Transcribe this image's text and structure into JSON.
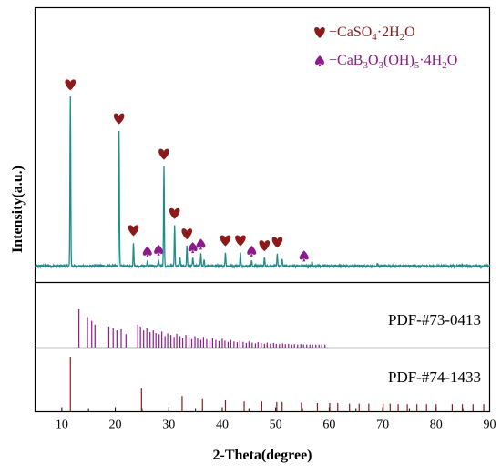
{
  "chart_data": {
    "type": "line",
    "xlabel": "2-Theta(degree)",
    "ylabel": "Intensity(a.u.)",
    "xlim": [
      5,
      90
    ],
    "xticks": [
      "10",
      "20",
      "30",
      "40",
      "50",
      "60",
      "70",
      "80",
      "90"
    ],
    "grid": false,
    "legend_position": "top-right",
    "legend": [
      {
        "symbol": "heart",
        "color": "#8b1a1a",
        "label": "CaSO4·2H2O"
      },
      {
        "symbol": "spade",
        "color": "#8b1a8b",
        "label": "CaB3O3(OH)5·4H2O"
      }
    ],
    "pattern_color": "#1f8c8c",
    "pattern_baseline": 3,
    "pattern_peaks": [
      {
        "x": 11.6,
        "y": 100
      },
      {
        "x": 20.7,
        "y": 80
      },
      {
        "x": 23.4,
        "y": 14
      },
      {
        "x": 26.0,
        "y": 2.5
      },
      {
        "x": 28.1,
        "y": 3.5
      },
      {
        "x": 29.1,
        "y": 59
      },
      {
        "x": 31.1,
        "y": 24
      },
      {
        "x": 32.1,
        "y": 5
      },
      {
        "x": 33.4,
        "y": 12
      },
      {
        "x": 34.5,
        "y": 5
      },
      {
        "x": 36.0,
        "y": 7
      },
      {
        "x": 36.6,
        "y": 4
      },
      {
        "x": 40.6,
        "y": 8
      },
      {
        "x": 43.4,
        "y": 8
      },
      {
        "x": 45.5,
        "y": 3
      },
      {
        "x": 47.9,
        "y": 5
      },
      {
        "x": 50.3,
        "y": 7
      },
      {
        "x": 51.2,
        "y": 4
      },
      {
        "x": 56.8,
        "y": 2.5
      },
      {
        "x": 69.0,
        "y": 1.5
      }
    ],
    "heart_markers_x": [
      11.6,
      20.7,
      23.4,
      29.1,
      31.1,
      33.4,
      40.6,
      43.4,
      47.9,
      50.3
    ],
    "spade_markers_x": [
      26.0,
      28.1,
      34.5,
      36.0,
      45.5,
      55.3
    ],
    "reference_patterns": [
      {
        "name": "PDF-#73-0413",
        "color": "#8b1a8b",
        "lines": [
          {
            "x": 13.2,
            "h": 1.0
          },
          {
            "x": 14.8,
            "h": 0.8
          },
          {
            "x": 15.6,
            "h": 0.7
          },
          {
            "x": 16.2,
            "h": 0.6
          },
          {
            "x": 18.8,
            "h": 0.55
          },
          {
            "x": 19.6,
            "h": 0.5
          },
          {
            "x": 20.3,
            "h": 0.45
          },
          {
            "x": 21.1,
            "h": 0.48
          },
          {
            "x": 22.0,
            "h": 0.35
          },
          {
            "x": 24.2,
            "h": 0.6
          },
          {
            "x": 24.7,
            "h": 0.55
          },
          {
            "x": 25.3,
            "h": 0.45
          },
          {
            "x": 25.9,
            "h": 0.5
          },
          {
            "x": 26.5,
            "h": 0.4
          },
          {
            "x": 27.1,
            "h": 0.45
          },
          {
            "x": 27.6,
            "h": 0.38
          },
          {
            "x": 28.2,
            "h": 0.35
          },
          {
            "x": 28.7,
            "h": 0.42
          },
          {
            "x": 29.3,
            "h": 0.3
          },
          {
            "x": 29.8,
            "h": 0.37
          },
          {
            "x": 30.4,
            "h": 0.33
          },
          {
            "x": 31.0,
            "h": 0.28
          },
          {
            "x": 31.5,
            "h": 0.36
          },
          {
            "x": 32.1,
            "h": 0.3
          },
          {
            "x": 32.6,
            "h": 0.25
          },
          {
            "x": 33.2,
            "h": 0.33
          },
          {
            "x": 33.8,
            "h": 0.28
          },
          {
            "x": 34.3,
            "h": 0.22
          },
          {
            "x": 34.9,
            "h": 0.3
          },
          {
            "x": 35.4,
            "h": 0.25
          },
          {
            "x": 36.0,
            "h": 0.2
          },
          {
            "x": 36.5,
            "h": 0.28
          },
          {
            "x": 37.1,
            "h": 0.22
          },
          {
            "x": 37.7,
            "h": 0.18
          },
          {
            "x": 38.2,
            "h": 0.25
          },
          {
            "x": 38.8,
            "h": 0.2
          },
          {
            "x": 39.4,
            "h": 0.17
          },
          {
            "x": 40.0,
            "h": 0.23
          },
          {
            "x": 40.5,
            "h": 0.18
          },
          {
            "x": 41.1,
            "h": 0.15
          },
          {
            "x": 41.6,
            "h": 0.2
          },
          {
            "x": 42.2,
            "h": 0.16
          },
          {
            "x": 42.8,
            "h": 0.14
          },
          {
            "x": 43.3,
            "h": 0.18
          },
          {
            "x": 43.9,
            "h": 0.15
          },
          {
            "x": 44.5,
            "h": 0.12
          },
          {
            "x": 45.0,
            "h": 0.16
          },
          {
            "x": 45.6,
            "h": 0.13
          },
          {
            "x": 46.2,
            "h": 0.11
          },
          {
            "x": 46.7,
            "h": 0.14
          },
          {
            "x": 47.3,
            "h": 0.12
          },
          {
            "x": 47.9,
            "h": 0.1
          },
          {
            "x": 48.4,
            "h": 0.13
          },
          {
            "x": 49.0,
            "h": 0.1
          },
          {
            "x": 49.6,
            "h": 0.12
          },
          {
            "x": 50.1,
            "h": 0.1
          },
          {
            "x": 50.7,
            "h": 0.09
          },
          {
            "x": 51.3,
            "h": 0.11
          },
          {
            "x": 51.8,
            "h": 0.09
          },
          {
            "x": 52.4,
            "h": 0.1
          },
          {
            "x": 53.0,
            "h": 0.08
          },
          {
            "x": 53.5,
            "h": 0.09
          },
          {
            "x": 54.1,
            "h": 0.08
          },
          {
            "x": 54.7,
            "h": 0.09
          },
          {
            "x": 55.2,
            "h": 0.08
          },
          {
            "x": 55.8,
            "h": 0.08
          },
          {
            "x": 56.4,
            "h": 0.08
          },
          {
            "x": 56.9,
            "h": 0.08
          },
          {
            "x": 57.5,
            "h": 0.08
          },
          {
            "x": 58.1,
            "h": 0.08
          },
          {
            "x": 58.6,
            "h": 0.08
          },
          {
            "x": 59.2,
            "h": 0.08
          }
        ]
      },
      {
        "name": "PDF-#74-1433",
        "color": "#8b1a1a",
        "lines": [
          {
            "x": 11.6,
            "h": 1.0
          },
          {
            "x": 24.9,
            "h": 0.42
          },
          {
            "x": 32.5,
            "h": 0.28
          },
          {
            "x": 36.3,
            "h": 0.22
          },
          {
            "x": 40.6,
            "h": 0.2
          },
          {
            "x": 44.1,
            "h": 0.18
          },
          {
            "x": 47.4,
            "h": 0.18
          },
          {
            "x": 50.2,
            "h": 0.17
          },
          {
            "x": 51.2,
            "h": 0.17
          },
          {
            "x": 54.8,
            "h": 0.16
          },
          {
            "x": 57.8,
            "h": 0.15
          },
          {
            "x": 60.1,
            "h": 0.15
          },
          {
            "x": 61.6,
            "h": 0.15
          },
          {
            "x": 63.8,
            "h": 0.14
          },
          {
            "x": 65.6,
            "h": 0.14
          },
          {
            "x": 67.4,
            "h": 0.14
          },
          {
            "x": 70.1,
            "h": 0.14
          },
          {
            "x": 71.4,
            "h": 0.14
          },
          {
            "x": 72.9,
            "h": 0.13
          },
          {
            "x": 74.6,
            "h": 0.13
          },
          {
            "x": 76.4,
            "h": 0.13
          },
          {
            "x": 78.2,
            "h": 0.13
          },
          {
            "x": 80.0,
            "h": 0.13
          },
          {
            "x": 83.0,
            "h": 0.13
          },
          {
            "x": 84.9,
            "h": 0.13
          },
          {
            "x": 86.9,
            "h": 0.13
          },
          {
            "x": 88.9,
            "h": 0.13
          }
        ]
      }
    ]
  }
}
